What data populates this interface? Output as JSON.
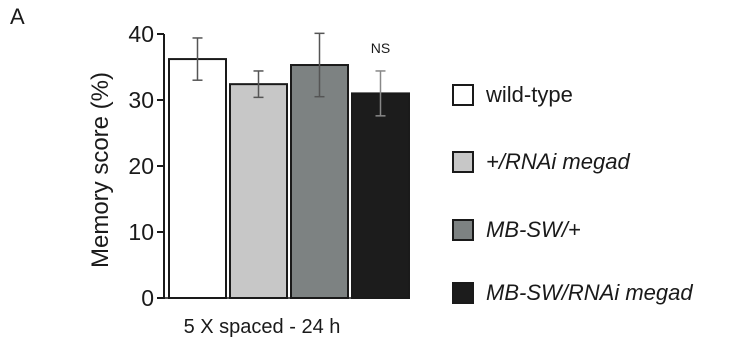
{
  "panel_label": "A",
  "chart_data": {
    "type": "bar",
    "categories": [
      "wild-type",
      "+/RNAi megad",
      "MB-SW/+",
      "MB-SW/RNAi megad"
    ],
    "values": [
      36.2,
      32.4,
      35.3,
      31.0
    ],
    "errors": [
      3.2,
      2.0,
      4.8,
      3.4
    ],
    "colors": [
      "#ffffff",
      "#c7c7c7",
      "#7d8282",
      "#1c1c1c"
    ],
    "ylabel": "Memory score (%)",
    "xlabel": "5 X spaced - 24 h",
    "ylim": [
      0,
      40
    ],
    "yticks": [
      "0",
      "10",
      "20",
      "30",
      "40"
    ],
    "annotations": [
      {
        "text": "NS",
        "category": "MB-SW/RNAi megad"
      }
    ],
    "legend": {
      "position": "right",
      "entries": [
        {
          "label": "wild-type",
          "italic": false
        },
        {
          "label": "+/RNAi megad",
          "italic": true
        },
        {
          "label": "MB-SW/+",
          "italic": true
        },
        {
          "label": "MB-SW/RNAi megad",
          "italic": true
        }
      ]
    },
    "grid": false
  }
}
